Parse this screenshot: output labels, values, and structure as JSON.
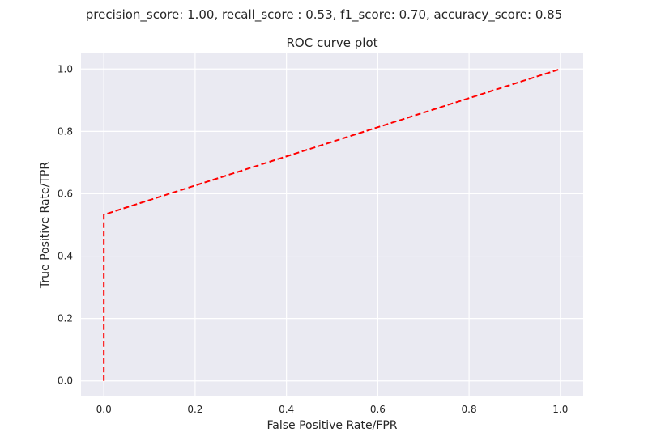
{
  "figure": {
    "suptitle": "precision_score: 1.00, recall_score : 0.53, f1_score: 0.70, accuracy_score: 0.85"
  },
  "chart_data": {
    "type": "line",
    "title": "ROC curve plot",
    "xlabel": "False Positive Rate/FPR",
    "ylabel": "True Positive Rate/TPR",
    "xlim": [
      -0.05,
      1.05
    ],
    "ylim": [
      -0.05,
      1.05
    ],
    "xticks": [
      0.0,
      0.2,
      0.4,
      0.6,
      0.8,
      1.0
    ],
    "yticks": [
      0.0,
      0.2,
      0.4,
      0.6,
      0.8,
      1.0
    ],
    "xtick_labels": [
      "0.0",
      "0.2",
      "0.4",
      "0.6",
      "0.8",
      "1.0"
    ],
    "ytick_labels": [
      "0.0",
      "0.2",
      "0.4",
      "0.6",
      "0.8",
      "1.0"
    ],
    "grid": true,
    "series": [
      {
        "x": [
          0.0,
          0.0,
          1.0
        ],
        "y": [
          0.0,
          0.533,
          1.0
        ],
        "color": "#ff0000",
        "linestyle": "dashed"
      }
    ]
  },
  "colors": {
    "axes_background": "#eaeaf2",
    "grid": "#ffffff",
    "text": "#262626"
  }
}
